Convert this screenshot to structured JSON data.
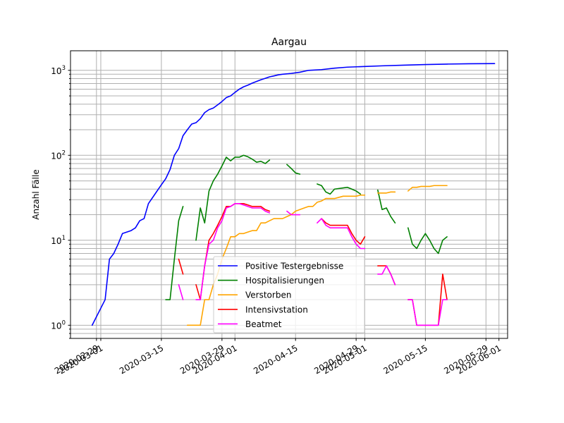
{
  "chart_data": {
    "type": "line",
    "title": "Aargau",
    "xlabel": "",
    "ylabel": "Anzahl Fälle",
    "yscale": "log",
    "ylim": [
      0.7,
      1700
    ],
    "xlim": [
      "2020-02-23",
      "2020-06-03"
    ],
    "grid": true,
    "legend_position": "lower center",
    "x_ticks": [
      {
        "date": "2020-02-29",
        "label": "2020-02-29"
      },
      {
        "date": "2020-03-01",
        "label": "2020-03-01"
      },
      {
        "date": "2020-03-15",
        "label": "2020-03-15"
      },
      {
        "date": "2020-03-29",
        "label": "2020-03-29"
      },
      {
        "date": "2020-04-01",
        "label": "2020-04-01"
      },
      {
        "date": "2020-04-15",
        "label": "2020-04-15"
      },
      {
        "date": "2020-04-29",
        "label": "2020-04-29"
      },
      {
        "date": "2020-05-01",
        "label": "2020-05-01"
      },
      {
        "date": "2020-05-15",
        "label": "2020-05-15"
      },
      {
        "date": "2020-05-29",
        "label": "2020-05-29"
      },
      {
        "date": "2020-06-01",
        "label": "2020-06-01"
      }
    ],
    "y_ticks": [
      {
        "value": 1,
        "base": "10",
        "exp": "0"
      },
      {
        "value": 10,
        "base": "10",
        "exp": "1"
      },
      {
        "value": 100,
        "base": "10",
        "exp": "2"
      },
      {
        "value": 1000,
        "base": "10",
        "exp": "3"
      }
    ],
    "series": [
      {
        "name": "Positive Testergebnisse",
        "color": "#0000ff",
        "points": [
          [
            "2020-02-28",
            1
          ],
          [
            "2020-03-02",
            2
          ],
          [
            "2020-03-03",
            6
          ],
          [
            "2020-03-04",
            7
          ],
          [
            "2020-03-05",
            9
          ],
          [
            "2020-03-06",
            12
          ],
          [
            "2020-03-08",
            13
          ],
          [
            "2020-03-09",
            14
          ],
          [
            "2020-03-10",
            17
          ],
          [
            "2020-03-11",
            18
          ],
          [
            "2020-03-12",
            27
          ],
          [
            "2020-03-13",
            32
          ],
          [
            "2020-03-14",
            38
          ],
          [
            "2020-03-15",
            45
          ],
          [
            "2020-03-16",
            53
          ],
          [
            "2020-03-17",
            68
          ],
          [
            "2020-03-18",
            100
          ],
          [
            "2020-03-19",
            120
          ],
          [
            "2020-03-20",
            170
          ],
          [
            "2020-03-21",
            200
          ],
          [
            "2020-03-22",
            233
          ],
          [
            "2020-03-23",
            242
          ],
          [
            "2020-03-24",
            270
          ],
          [
            "2020-03-25",
            318
          ],
          [
            "2020-03-26",
            345
          ],
          [
            "2020-03-27",
            360
          ],
          [
            "2020-03-28",
            392
          ],
          [
            "2020-03-29",
            430
          ],
          [
            "2020-03-30",
            478
          ],
          [
            "2020-03-31",
            500
          ],
          [
            "2020-04-01",
            550
          ],
          [
            "2020-04-02",
            600
          ],
          [
            "2020-04-03",
            640
          ],
          [
            "2020-04-04",
            670
          ],
          [
            "2020-04-05",
            708
          ],
          [
            "2020-04-06",
            740
          ],
          [
            "2020-04-07",
            775
          ],
          [
            "2020-04-08",
            805
          ],
          [
            "2020-04-09",
            838
          ],
          [
            "2020-04-10",
            860
          ],
          [
            "2020-04-11",
            885
          ],
          [
            "2020-04-12",
            900
          ],
          [
            "2020-04-14",
            920
          ],
          [
            "2020-04-16",
            950
          ],
          [
            "2020-04-18",
            1000
          ],
          [
            "2020-04-21",
            1020
          ],
          [
            "2020-04-24",
            1060
          ],
          [
            "2020-04-27",
            1090
          ],
          [
            "2020-05-01",
            1110
          ],
          [
            "2020-05-05",
            1130
          ],
          [
            "2020-05-10",
            1150
          ],
          [
            "2020-05-15",
            1170
          ],
          [
            "2020-05-20",
            1185
          ],
          [
            "2020-05-25",
            1195
          ],
          [
            "2020-05-31",
            1200
          ]
        ]
      },
      {
        "name": "Hospitalisierungen",
        "color": "#008000",
        "points": [
          [
            "2020-03-16",
            2
          ],
          [
            "2020-03-17",
            2
          ],
          [
            "2020-03-18",
            6
          ],
          [
            "2020-03-19",
            17
          ],
          [
            "2020-03-20",
            25
          ],
          null,
          [
            "2020-03-23",
            10
          ],
          [
            "2020-03-24",
            24
          ],
          [
            "2020-03-25",
            16
          ],
          [
            "2020-03-26",
            38
          ],
          [
            "2020-03-27",
            50
          ],
          [
            "2020-03-28",
            60
          ],
          [
            "2020-03-29",
            75
          ],
          [
            "2020-03-30",
            95
          ],
          [
            "2020-03-31",
            86
          ],
          [
            "2020-04-01",
            95
          ],
          [
            "2020-04-02",
            95
          ],
          [
            "2020-04-03",
            100
          ],
          [
            "2020-04-04",
            96
          ],
          [
            "2020-04-05",
            90
          ],
          [
            "2020-04-06",
            83
          ],
          [
            "2020-04-07",
            85
          ],
          [
            "2020-04-08",
            80
          ],
          [
            "2020-04-09",
            88
          ],
          null,
          [
            "2020-04-13",
            78
          ],
          [
            "2020-04-14",
            70
          ],
          [
            "2020-04-15",
            62
          ],
          [
            "2020-04-16",
            60
          ],
          null,
          [
            "2020-04-20",
            46
          ],
          [
            "2020-04-21",
            44
          ],
          [
            "2020-04-22",
            37
          ],
          [
            "2020-04-23",
            35
          ],
          [
            "2020-04-24",
            40
          ],
          [
            "2020-04-27",
            42
          ],
          [
            "2020-04-28",
            40
          ],
          [
            "2020-04-29",
            38
          ],
          [
            "2020-04-30",
            35
          ],
          null,
          [
            "2020-05-04",
            39
          ],
          [
            "2020-05-05",
            23
          ],
          [
            "2020-05-06",
            24
          ],
          [
            "2020-05-07",
            19
          ],
          [
            "2020-05-08",
            16
          ],
          null,
          [
            "2020-05-11",
            14
          ],
          [
            "2020-05-12",
            9
          ],
          [
            "2020-05-13",
            8
          ],
          [
            "2020-05-14",
            10
          ],
          [
            "2020-05-15",
            12
          ],
          [
            "2020-05-16",
            10
          ],
          [
            "2020-05-17",
            8
          ],
          [
            "2020-05-18",
            7
          ],
          [
            "2020-05-19",
            10
          ],
          [
            "2020-05-20",
            11
          ]
        ]
      },
      {
        "name": "Verstorben",
        "color": "#ffa500",
        "points": [
          [
            "2020-03-21",
            1
          ],
          [
            "2020-03-22",
            1
          ],
          [
            "2020-03-23",
            1
          ],
          [
            "2020-03-24",
            1
          ],
          [
            "2020-03-25",
            2
          ],
          [
            "2020-03-26",
            2
          ],
          [
            "2020-03-27",
            3
          ],
          [
            "2020-03-28",
            4
          ],
          [
            "2020-03-29",
            6
          ],
          [
            "2020-03-30",
            8
          ],
          [
            "2020-03-31",
            11
          ],
          [
            "2020-04-01",
            11
          ],
          [
            "2020-04-02",
            12
          ],
          [
            "2020-04-03",
            12
          ],
          [
            "2020-04-04",
            12.5
          ],
          [
            "2020-04-05",
            13
          ],
          [
            "2020-04-06",
            13
          ],
          [
            "2020-04-07",
            16
          ],
          [
            "2020-04-08",
            16
          ],
          [
            "2020-04-09",
            17
          ],
          [
            "2020-04-10",
            18
          ],
          [
            "2020-04-11",
            18
          ],
          [
            "2020-04-12",
            18
          ],
          [
            "2020-04-13",
            19
          ],
          [
            "2020-04-14",
            20
          ],
          [
            "2020-04-15",
            22
          ],
          [
            "2020-04-16",
            23
          ],
          [
            "2020-04-17",
            24
          ],
          [
            "2020-04-18",
            25
          ],
          [
            "2020-04-19",
            25
          ],
          [
            "2020-04-20",
            28
          ],
          [
            "2020-04-21",
            29
          ],
          [
            "2020-04-22",
            31
          ],
          [
            "2020-04-23",
            31
          ],
          [
            "2020-04-24",
            31
          ],
          [
            "2020-04-25",
            32
          ],
          [
            "2020-04-26",
            33
          ],
          [
            "2020-04-27",
            33
          ],
          [
            "2020-04-28",
            33
          ],
          [
            "2020-04-29",
            33
          ],
          [
            "2020-04-30",
            34
          ],
          [
            "2020-05-01",
            34
          ],
          null,
          [
            "2020-05-04",
            36
          ],
          [
            "2020-05-05",
            36
          ],
          [
            "2020-05-06",
            36
          ],
          [
            "2020-05-07",
            37
          ],
          [
            "2020-05-08",
            37
          ],
          null,
          [
            "2020-05-11",
            38
          ],
          [
            "2020-05-12",
            42
          ],
          [
            "2020-05-13",
            42
          ],
          [
            "2020-05-14",
            43
          ],
          [
            "2020-05-15",
            43
          ],
          [
            "2020-05-16",
            43
          ],
          [
            "2020-05-17",
            44
          ],
          [
            "2020-05-18",
            44
          ],
          [
            "2020-05-19",
            44
          ],
          [
            "2020-05-20",
            44
          ]
        ]
      },
      {
        "name": "Intensivstation",
        "color": "#ff0000",
        "points": [
          [
            "2020-03-19",
            6
          ],
          [
            "2020-03-20",
            4
          ],
          null,
          [
            "2020-03-23",
            3
          ],
          [
            "2020-03-24",
            2
          ],
          [
            "2020-03-25",
            5
          ],
          [
            "2020-03-26",
            10
          ],
          [
            "2020-03-27",
            12
          ],
          [
            "2020-03-28",
            15
          ],
          [
            "2020-03-29",
            19
          ],
          [
            "2020-03-30",
            25
          ],
          [
            "2020-03-31",
            25
          ],
          [
            "2020-04-01",
            27
          ],
          [
            "2020-04-02",
            27
          ],
          [
            "2020-04-03",
            27
          ],
          [
            "2020-04-04",
            26
          ],
          [
            "2020-04-05",
            25
          ],
          [
            "2020-04-06",
            25
          ],
          [
            "2020-04-07",
            25
          ],
          [
            "2020-04-08",
            23
          ],
          [
            "2020-04-09",
            22
          ],
          null,
          [
            "2020-04-21",
            18
          ],
          [
            "2020-04-22",
            16
          ],
          [
            "2020-04-23",
            15
          ],
          [
            "2020-04-24",
            15
          ],
          [
            "2020-04-25",
            15
          ],
          [
            "2020-04-26",
            15
          ],
          [
            "2020-04-27",
            15
          ],
          [
            "2020-04-28",
            12
          ],
          [
            "2020-04-29",
            10
          ],
          [
            "2020-04-30",
            9
          ],
          [
            "2020-05-01",
            11
          ],
          null,
          [
            "2020-05-04",
            5
          ],
          [
            "2020-05-05",
            5
          ],
          [
            "2020-05-06",
            5
          ],
          [
            "2020-05-07",
            4
          ],
          [
            "2020-05-08",
            3
          ],
          null,
          [
            "2020-05-11",
            2
          ],
          [
            "2020-05-12",
            2
          ],
          [
            "2020-05-13",
            1
          ],
          [
            "2020-05-14",
            1
          ],
          [
            "2020-05-15",
            1
          ],
          [
            "2020-05-16",
            1
          ],
          [
            "2020-05-17",
            1
          ],
          [
            "2020-05-18",
            1
          ],
          [
            "2020-05-19",
            4
          ],
          [
            "2020-05-20",
            2
          ]
        ]
      },
      {
        "name": "Beatmet",
        "color": "#ff00ff",
        "points": [
          [
            "2020-03-19",
            3
          ],
          [
            "2020-03-20",
            2
          ],
          null,
          [
            "2020-03-23",
            2
          ],
          [
            "2020-03-24",
            2
          ],
          [
            "2020-03-25",
            5
          ],
          [
            "2020-03-26",
            9
          ],
          [
            "2020-03-27",
            10
          ],
          [
            "2020-03-28",
            14
          ],
          [
            "2020-03-29",
            17
          ],
          [
            "2020-03-30",
            24
          ],
          [
            "2020-03-31",
            25
          ],
          [
            "2020-04-01",
            27
          ],
          [
            "2020-04-02",
            27
          ],
          [
            "2020-04-03",
            26
          ],
          [
            "2020-04-04",
            25
          ],
          [
            "2020-04-05",
            24
          ],
          [
            "2020-04-06",
            24
          ],
          [
            "2020-04-07",
            24
          ],
          [
            "2020-04-08",
            22
          ],
          [
            "2020-04-09",
            21
          ],
          null,
          [
            "2020-04-13",
            22
          ],
          [
            "2020-04-14",
            20
          ],
          [
            "2020-04-15",
            20
          ],
          [
            "2020-04-16",
            20
          ],
          null,
          [
            "2020-04-20",
            16
          ],
          [
            "2020-04-21",
            18
          ],
          [
            "2020-04-22",
            15
          ],
          [
            "2020-04-23",
            14
          ],
          [
            "2020-04-24",
            14
          ],
          [
            "2020-04-25",
            14
          ],
          [
            "2020-04-26",
            14
          ],
          [
            "2020-04-27",
            14
          ],
          [
            "2020-04-28",
            11
          ],
          [
            "2020-04-29",
            9
          ],
          [
            "2020-04-30",
            8
          ],
          [
            "2020-05-01",
            8
          ],
          null,
          [
            "2020-05-04",
            4
          ],
          [
            "2020-05-05",
            4
          ],
          [
            "2020-05-06",
            5
          ],
          [
            "2020-05-07",
            4
          ],
          [
            "2020-05-08",
            3
          ],
          null,
          [
            "2020-05-11",
            2
          ],
          [
            "2020-05-12",
            2
          ],
          [
            "2020-05-13",
            1
          ],
          [
            "2020-05-14",
            1
          ],
          [
            "2020-05-15",
            1
          ],
          [
            "2020-05-16",
            1
          ],
          [
            "2020-05-17",
            1
          ],
          [
            "2020-05-18",
            1
          ],
          [
            "2020-05-19",
            2
          ],
          [
            "2020-05-20",
            2
          ]
        ]
      }
    ]
  }
}
